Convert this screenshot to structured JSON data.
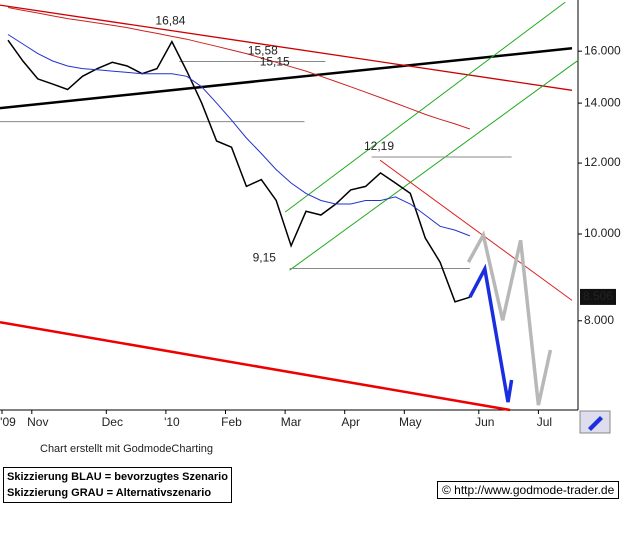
{
  "chart_data": {
    "type": "line",
    "log_scale": true,
    "categories": [
      "'09",
      null,
      "Nov",
      null,
      null,
      null,
      null,
      "Dec",
      null,
      null,
      null,
      "'10",
      null,
      null,
      null,
      "Feb",
      null,
      null,
      null,
      "Mar",
      null,
      null,
      null,
      "Apr",
      null,
      null,
      null,
      "May",
      null,
      null,
      null,
      null,
      "Jun",
      null,
      null,
      null,
      "Jul",
      null,
      null
    ],
    "ylim": [
      6.36,
      18.25
    ],
    "yticks": [
      {
        "value": 16,
        "label": "16.000"
      },
      {
        "value": 14,
        "label": "14.000"
      },
      {
        "value": 12,
        "label": "12.000"
      },
      {
        "value": 10,
        "label": "10.000"
      },
      {
        "value": 8,
        "label": "8.000"
      }
    ],
    "series": [
      {
        "color": "#000000",
        "values": [
          16.46,
          15.6,
          14.9,
          14.7,
          14.5,
          15.0,
          15.3,
          15.55,
          15.4,
          15.1,
          15.3,
          16.4,
          15.2,
          14.0,
          12.7,
          12.5,
          11.3,
          11.5,
          10.9,
          9.7,
          10.6,
          10.5,
          10.8,
          11.2,
          11.3,
          11.7,
          11.4,
          11.1,
          9.9,
          9.3,
          8.4,
          8.5,
          null,
          null,
          null,
          null,
          null,
          null,
          null
        ]
      },
      {
        "color": "#2233cc",
        "values": [
          16.7,
          16.3,
          15.9,
          15.6,
          15.4,
          15.3,
          15.25,
          15.2,
          15.15,
          15.1,
          15.1,
          15.1,
          15.0,
          14.6,
          14.0,
          13.4,
          12.8,
          12.3,
          11.8,
          11.4,
          11.1,
          10.9,
          10.8,
          10.8,
          10.9,
          10.9,
          11.0,
          10.8,
          10.5,
          10.2,
          10.1,
          9.95,
          null,
          null,
          null,
          null,
          null,
          null,
          null
        ]
      },
      {
        "color": "#cc2222",
        "values": [
          17.9,
          17.77,
          17.65,
          17.52,
          17.4,
          17.3,
          17.2,
          17.1,
          17.0,
          16.87,
          16.75,
          16.62,
          16.5,
          16.35,
          16.2,
          16.05,
          15.9,
          15.72,
          15.55,
          15.37,
          15.2,
          15.0,
          14.8,
          14.6,
          14.4,
          14.2,
          14.0,
          13.8,
          13.6,
          13.43,
          13.27,
          13.1,
          null,
          null,
          null,
          null,
          null,
          null,
          null
        ]
      }
    ],
    "overlays": [
      {
        "color": "#000000",
        "x": [
          -0.54,
          37.85
        ],
        "values": [
          13.82,
          16.12
        ]
      },
      {
        "color": "#cc0000",
        "x": [
          -0.54,
          37.85
        ],
        "values": [
          18.01,
          14.47
        ]
      },
      {
        "color": "#ee0000",
        "x": [
          -0.54,
          33.7
        ],
        "values": [
          7.97,
          6.36
        ]
      },
      {
        "color": "#22aa22",
        "x": [
          18.6,
          37.4
        ],
        "values": [
          10.58,
          18.15
        ]
      },
      {
        "color": "#22aa22",
        "x": [
          18.9,
          38.26
        ],
        "values": [
          9.11,
          15.63
        ]
      },
      {
        "color": "#dd2222",
        "x": [
          24.97,
          37.85
        ],
        "values": [
          12.09,
          8.43
        ]
      },
      {
        "color": "#888888",
        "x": [
          11.5,
          21.3
        ],
        "values": [
          15.58,
          15.58
        ]
      },
      {
        "color": "#888888",
        "x": [
          -0.54,
          19.9
        ],
        "values": [
          13.35,
          13.35
        ]
      },
      {
        "color": "#888888",
        "x": [
          24.4,
          33.8
        ],
        "values": [
          12.19,
          12.19
        ]
      },
      {
        "color": "#888888",
        "x": [
          18.9,
          31
        ],
        "values": [
          9.15,
          9.15
        ]
      },
      {
        "color": "#1a2ee0",
        "x": [
          31,
          32,
          33.56,
          33.8
        ],
        "values": [
          8.5,
          9.14,
          6.49,
          6.87
        ]
      },
      {
        "color": "#b8b8b8",
        "x": [
          30.9,
          31.9,
          33.2,
          34.4,
          35.6,
          36.4
        ],
        "values": [
          9.3,
          9.97,
          8.01,
          9.84,
          6.44,
          7.42
        ]
      }
    ],
    "annotations": [
      {
        "value": 16.84,
        "label": "16,84",
        "x": 10.9
      },
      {
        "value": 15.58,
        "label": "15,58",
        "x": 17.1
      },
      {
        "value": 15.15,
        "label": "15,15",
        "x": 17.9
      },
      {
        "value": 12.19,
        "label": "12,19",
        "x": 24.9
      },
      {
        "value": 9.15,
        "label": "9,15",
        "x": 17.2
      }
    ],
    "last_price": 8.506
  },
  "footer": {
    "credit": "Chart erstellt mit GodmodeCharting",
    "legend": [
      "Skizzierung BLAU = bevorzugtes Szenario",
      "Skizzierung GRAU = Alternativszenario"
    ],
    "copyright": "© http://www.godmode-trader.de"
  }
}
